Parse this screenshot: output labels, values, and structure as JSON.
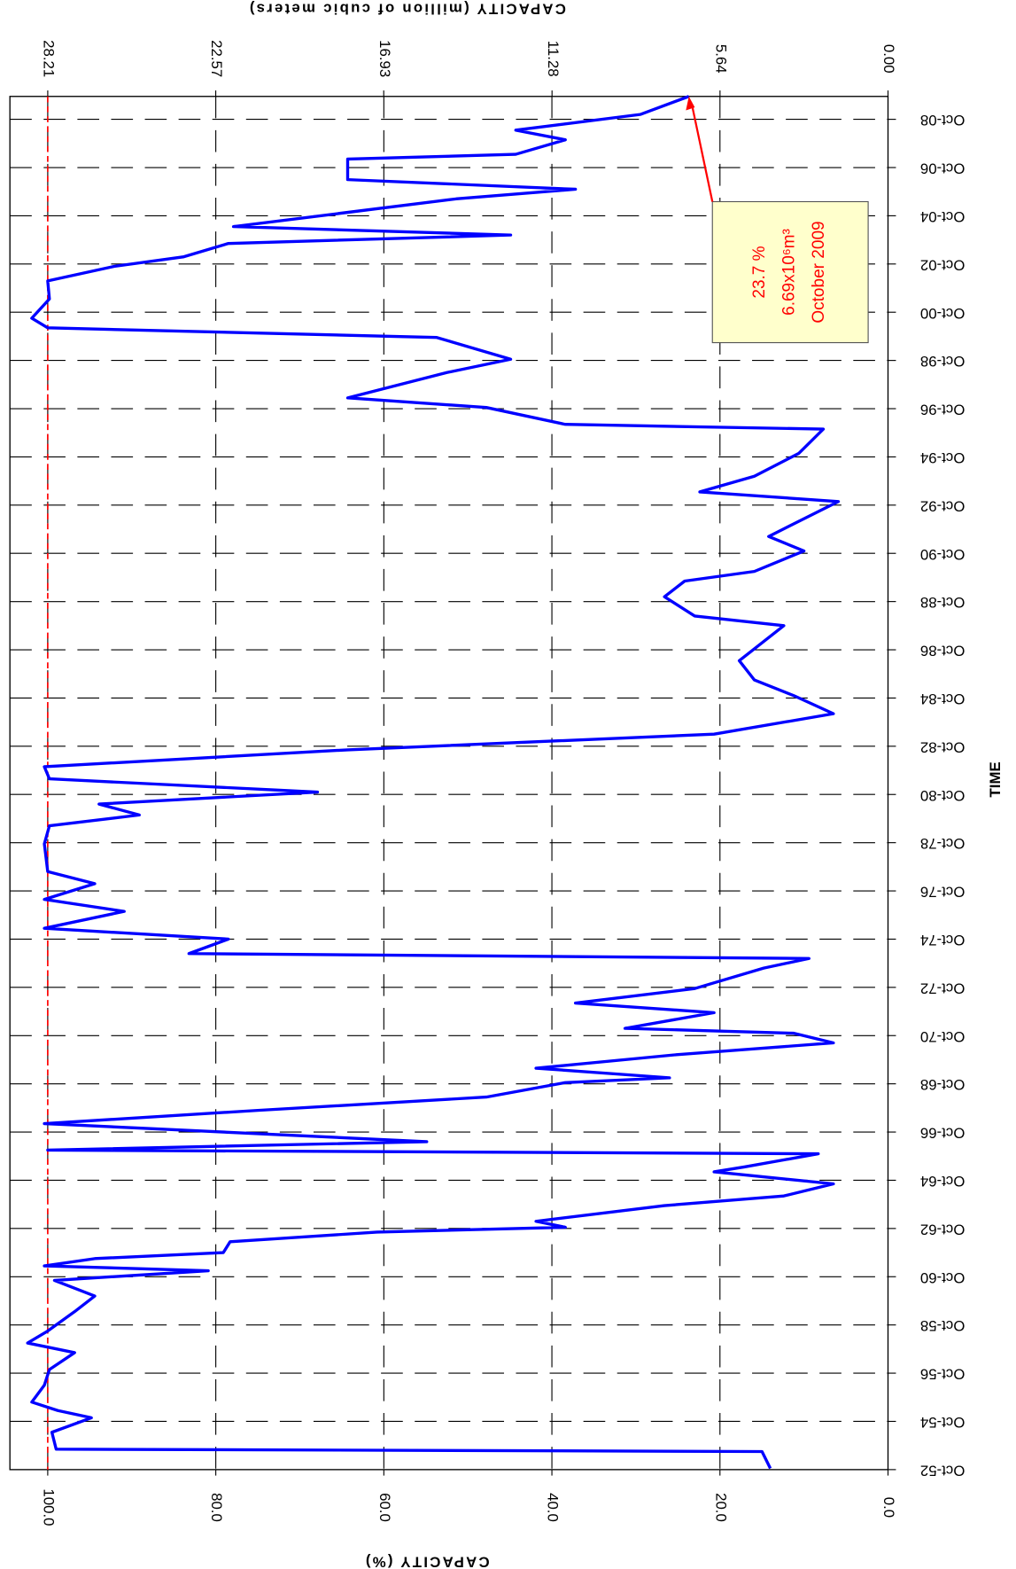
{
  "chart_data": {
    "type": "line",
    "x_label": "TIME",
    "y_label": "CAPACITY (%)",
    "y2_label": "CAPACITY (million of cubic meters)",
    "x": [
      1952.8,
      1953.5,
      1953.6,
      1954.3,
      1954.9,
      1955.2,
      1955.55,
      1956.25,
      1956.9,
      1957.6,
      1958.0,
      1958.5,
      1959.3,
      1959.95,
      1960.6,
      1961.0,
      1961.2,
      1961.5,
      1961.75,
      1962.2,
      1962.6,
      1962.8,
      1963.05,
      1963.7,
      1964.1,
      1964.6,
      1965.1,
      1965.3,
      1965.85,
      1966.0,
      1966.35,
      1967.1,
      1967.65,
      1968.2,
      1968.8,
      1969.0,
      1969.4,
      1969.95,
      1970.45,
      1970.85,
      1971.05,
      1971.7,
      1972.1,
      1972.7,
      1973.55,
      1973.95,
      1974.15,
      1974.75,
      1975.2,
      1975.9,
      1976.4,
      1977.05,
      1977.55,
      1978.7,
      1979.45,
      1979.9,
      1980.35,
      1980.85,
      1981.4,
      1981.9,
      1982.6,
      1983.25,
      1984.1,
      1984.85,
      1985.5,
      1986.3,
      1987.75,
      1988.15,
      1988.95,
      1989.6,
      1990.0,
      1990.85,
      1991.45,
      1992.9,
      1993.3,
      1993.95,
      1994.9,
      1995.9,
      1996.1,
      1996.8,
      1997.2,
      1998.25,
      1998.8,
      1999.7,
      2000.1,
      2000.5,
      2001.3,
      2002.05,
      2002.65,
      2003.05,
      2003.6,
      2003.95,
      2004.3,
      2005.45,
      2005.85,
      2006.25,
      2007.1,
      2007.3,
      2007.9,
      2008.3,
      2008.95,
      2009.7
    ],
    "series": [
      {
        "color": "#0000ff",
        "values": [
          14,
          15,
          99,
          99.5,
          94.8,
          98.8,
          101.9,
          100.4,
          99.8,
          96.8,
          102.4,
          100,
          96.8,
          94.4,
          99.2,
          80.9,
          100.4,
          94.4,
          79.1,
          78.3,
          60.8,
          38.4,
          41.9,
          26.6,
          12.4,
          6.5,
          20.7,
          17.1,
          8.3,
          100,
          54.9,
          100.4,
          75,
          47.8,
          38.4,
          26,
          41.9,
          25.4,
          6.5,
          11.2,
          31.3,
          20.7,
          37.2,
          23,
          14.8,
          9.4,
          83.2,
          78.5,
          100.4,
          90.9,
          100.4,
          94.4,
          100,
          100.4,
          99.8,
          89.1,
          93.9,
          67.9,
          99.8,
          100.4,
          64.3,
          20.7,
          6.5,
          11.2,
          15.9,
          17.7,
          12.4,
          23,
          26.6,
          24.2,
          15.9,
          10,
          14.2,
          5.9,
          22.4,
          15.9,
          10.6,
          7.7,
          38.4,
          47.8,
          64.3,
          52.5,
          44.9,
          53.7,
          100,
          101.9,
          99.8,
          100,
          92.1,
          83.8,
          78.5,
          44.9,
          77.9,
          51.4,
          37.2,
          64.3,
          64.3,
          44.3,
          38.4,
          44.3,
          29.5,
          23.7
        ]
      }
    ],
    "xlim": [
      1952.75,
      2009.7
    ],
    "xticks": [
      {
        "value": 1952.75,
        "label": "Oct-52"
      },
      {
        "value": 1954.75,
        "label": "Oct-54"
      },
      {
        "value": 1956.75,
        "label": "Oct-56"
      },
      {
        "value": 1958.75,
        "label": "Oct-58"
      },
      {
        "value": 1960.75,
        "label": "Oct-60"
      },
      {
        "value": 1962.75,
        "label": "Oct-62"
      },
      {
        "value": 1964.75,
        "label": "Oct-64"
      },
      {
        "value": 1966.75,
        "label": "Oct-66"
      },
      {
        "value": 1968.75,
        "label": "Oct-68"
      },
      {
        "value": 1970.75,
        "label": "Oct-70"
      },
      {
        "value": 1972.75,
        "label": "Oct-72"
      },
      {
        "value": 1974.75,
        "label": "Oct-74"
      },
      {
        "value": 1976.75,
        "label": "Oct-76"
      },
      {
        "value": 1978.75,
        "label": "Oct-78"
      },
      {
        "value": 1980.75,
        "label": "Oct-80"
      },
      {
        "value": 1982.75,
        "label": "Oct-82"
      },
      {
        "value": 1984.75,
        "label": "Oct-84"
      },
      {
        "value": 1986.75,
        "label": "Oct-86"
      },
      {
        "value": 1988.75,
        "label": "Oct-88"
      },
      {
        "value": 1990.75,
        "label": "Oct-90"
      },
      {
        "value": 1992.75,
        "label": "Oct-92"
      },
      {
        "value": 1994.75,
        "label": "Oct-94"
      },
      {
        "value": 1996.75,
        "label": "Oct-96"
      },
      {
        "value": 1998.75,
        "label": "Oct-98"
      },
      {
        "value": 2000.75,
        "label": "Oct-00"
      },
      {
        "value": 2002.75,
        "label": "Oct-02"
      },
      {
        "value": 2004.75,
        "label": "Oct-04"
      },
      {
        "value": 2006.75,
        "label": "Oct-06"
      },
      {
        "value": 2008.75,
        "label": "Oct-08"
      }
    ],
    "ylim": [
      0,
      104.5
    ],
    "yticks": [
      {
        "value": 0,
        "label": "0.0"
      },
      {
        "value": 20,
        "label": "20.0"
      },
      {
        "value": 40,
        "label": "40.0"
      },
      {
        "value": 60,
        "label": "60.0"
      },
      {
        "value": 80,
        "label": "80.0"
      },
      {
        "value": 100,
        "label": "100.0"
      }
    ],
    "y2lim": [
      0,
      29.48
    ],
    "y2ticks": [
      {
        "value": 0,
        "label": "0.00"
      },
      5.64,
      11.28,
      16.93,
      22.57,
      28.21
    ],
    "grid": true,
    "ref_line": {
      "value": 100,
      "color": "#ff0000"
    },
    "annotation": [
      "23.7 %",
      "6.69x10⁶m³",
      "October 2009"
    ],
    "annotation_color": "#ff0000"
  }
}
